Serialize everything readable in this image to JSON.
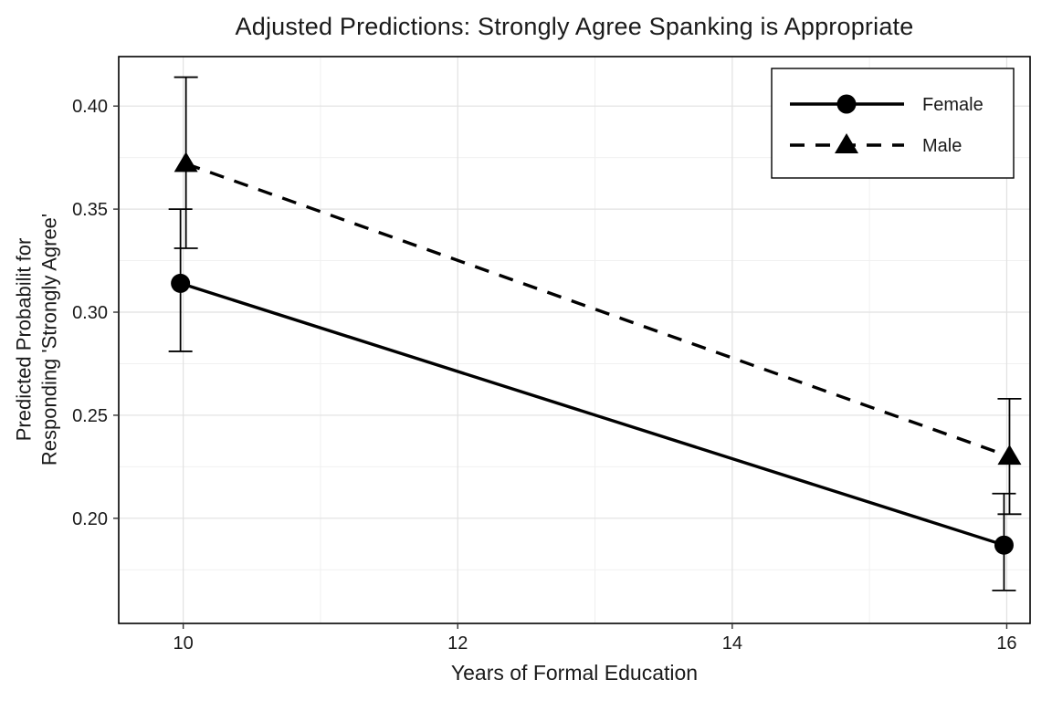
{
  "chart_data": {
    "type": "line",
    "title": "Adjusted Predictions: Strongly Agree Spanking is Appropriate",
    "xlabel": "Years of Formal Education",
    "ylabel_lines": [
      "Predicted Probabilit for",
      "Responding 'Strongly Agree'"
    ],
    "x_ticks": [
      10,
      12,
      14,
      16
    ],
    "y_ticks": [
      0.2,
      0.25,
      0.3,
      0.35,
      0.4
    ],
    "y_tick_labels": [
      "0.20",
      "0.25",
      "0.30",
      "0.35",
      "0.40"
    ],
    "xlim": [
      9.53,
      16.17
    ],
    "ylim": [
      0.149,
      0.424
    ],
    "grid": true,
    "legend_position": "top-right-inside",
    "series": [
      {
        "name": "Female",
        "marker": "circle",
        "line_style": "solid",
        "color": "#000000",
        "x": [
          10,
          16
        ],
        "y": [
          0.314,
          0.187
        ],
        "ci_low": [
          0.281,
          0.165
        ],
        "ci_high": [
          0.35,
          0.212
        ]
      },
      {
        "name": "Male",
        "marker": "triangle",
        "line_style": "dashed",
        "color": "#000000",
        "x": [
          10,
          16
        ],
        "y": [
          0.372,
          0.23
        ],
        "ci_low": [
          0.331,
          0.202
        ],
        "ci_high": [
          0.414,
          0.258
        ]
      }
    ]
  }
}
